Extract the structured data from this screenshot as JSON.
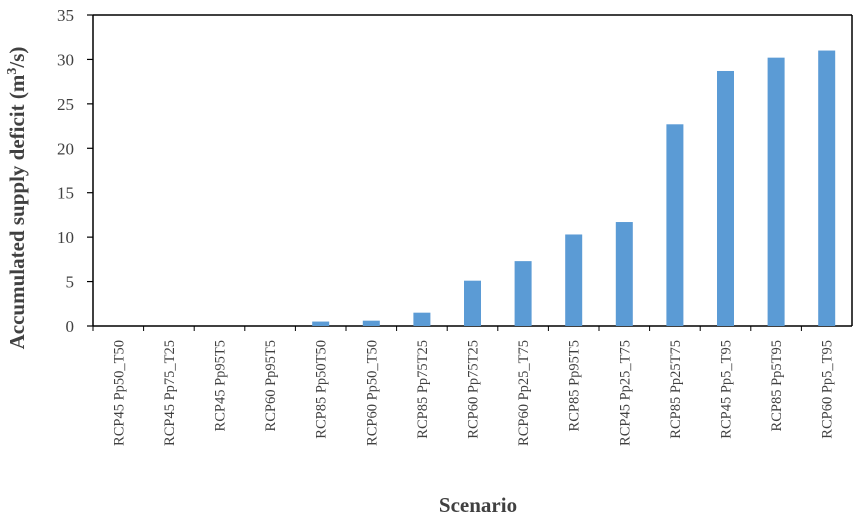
{
  "chart_data": {
    "type": "bar",
    "title": "",
    "xlabel": "Scenario",
    "ylabel_main": "Accumulated supply deficit (m",
    "ylabel_sup": "3",
    "ylabel_end": "/s)",
    "ylim": [
      0,
      35
    ],
    "yticks": [
      0,
      5,
      10,
      15,
      20,
      25,
      30,
      35
    ],
    "ytick_labels": [
      "0",
      "5",
      "10",
      "15",
      "20",
      "25",
      "30",
      "35"
    ],
    "grid": false,
    "bar_color": "#5b9bd5",
    "categories": [
      "RCP45 Pp50_T50",
      "RCP45 Pp75_T25",
      "RCP45 Pp95T5",
      "RCP60 Pp95T5",
      "RCP85 Pp50T50",
      "RCP60 Pp50_T50",
      "RCP85 Pp75T25",
      "RCP60 Pp75T25",
      "RCP60 Pp25_T75",
      "RCP85 Pp95T5",
      "RCP45 Pp25_T75",
      "RCP85 Pp25T75",
      "RCP45 Pp5_T95",
      "RCP85 Pp5T95",
      "RCP60 Pp5_T95"
    ],
    "values": [
      0,
      0,
      0,
      0,
      0.5,
      0.6,
      1.5,
      5.1,
      7.3,
      10.3,
      11.7,
      22.7,
      28.7,
      30.2,
      31.0
    ]
  }
}
